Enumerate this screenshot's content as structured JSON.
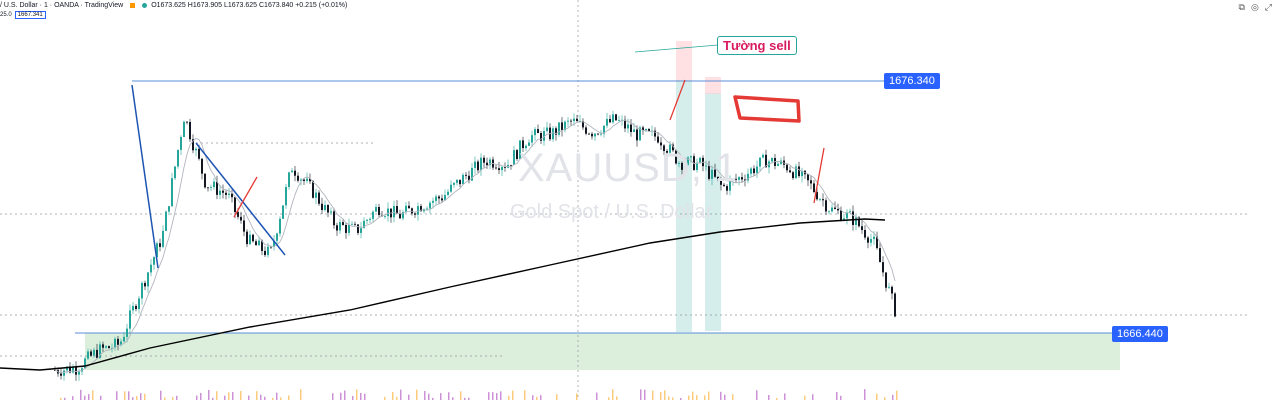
{
  "header": {
    "symbol": "/ U.S. Dollar · 1 · OANDA · TradingView",
    "ohlc": "O1673.625 H1673.905 L1673.625 C1673.840 +0.215 (+0.01%)",
    "sub_prefix": "25.0",
    "sub_value": "1667.341"
  },
  "watermark": {
    "symbol": "XAUUSD, 1",
    "name": "Gold Spot / U.S. Dollar"
  },
  "annotations": {
    "note": "Tường sell",
    "resistance_label": "1676.340",
    "support_label": "1666.440"
  },
  "colors": {
    "up": "#26a69a",
    "down": "#131722",
    "ma_slow": "#000000",
    "ma_fast": "#b2b5be",
    "hline": "#5b8fd8",
    "support_zone": "#c8e6c9",
    "red": "#e53935",
    "blue_trend": "#1e55b3"
  },
  "chart_data": {
    "type": "line",
    "title": "XAUUSD, 1",
    "xlabel": "",
    "ylabel": "",
    "ylim": [
      1664.4,
      1681.2
    ],
    "grid": false,
    "series": [
      {
        "name": "",
        "values": [
          1664.4,
          1664.5,
          1665.3,
          1665.6,
          1668.2,
          1670.7,
          1676.3,
          1673.1,
          1672.6,
          1670.4,
          1669.8,
          1673.9,
          1672.7,
          1671.2,
          1670.9,
          1672.0,
          1671.6,
          1672.1,
          1672.5,
          1673.4,
          1674.2,
          1674.0,
          1675.3,
          1675.4,
          1676.0,
          1675.5,
          1676.1,
          1675.4,
          1675.3,
          1674.1,
          1674.0,
          1672.9,
          1673.5,
          1674.2,
          1673.9,
          1673.1,
          1671.9,
          1671.5,
          1670.4,
          1667.2
        ]
      }
    ],
    "levels": [
      1676.34,
      1666.44
    ]
  }
}
